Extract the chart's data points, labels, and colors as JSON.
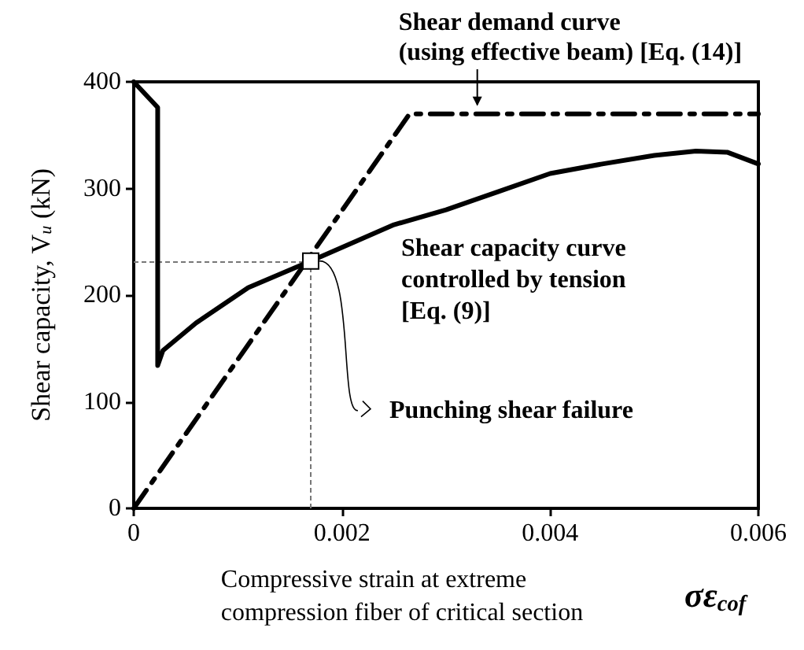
{
  "chart_data": {
    "type": "line",
    "xlabel": "Compressive strain at extreme\ncompression fiber of critical section",
    "ylabel": "Shear capacity, V$_{u}$ (kN)",
    "xlim": [
      0,
      0.006
    ],
    "xticks": [
      0,
      0.002,
      0.004,
      0.006
    ],
    "ylim": [
      0,
      400
    ],
    "yticks": [
      0,
      100,
      200,
      300,
      400
    ],
    "ref_lines": [
      {
        "axis": "x",
        "value": 0.0017,
        "color": "#777777",
        "line_style": "dotted"
      },
      {
        "axis": "y",
        "value": 232,
        "color": "#777777",
        "line_style": "dotted"
      }
    ],
    "grid": false,
    "marker": "none",
    "series": [
      {
        "color": "#000000",
        "line_style": "solid",
        "x": [
          0,
          0.00023,
          0.00023,
          0.00028,
          0.0006,
          0.0011,
          0.0017,
          0.0025,
          0.003,
          0.0035,
          0.004,
          0.0045,
          0.005,
          0.0054,
          0.0057,
          0.006
        ],
        "values": [
          400,
          376,
          134,
          148,
          174,
          207,
          232,
          266,
          280,
          297,
          314,
          323,
          331,
          335,
          334,
          323
        ]
      },
      {
        "color": "#000000",
        "line_style": "dashed",
        "x": [
          0,
          0.00265,
          0.006
        ],
        "values": [
          0,
          370,
          370
        ]
      }
    ],
    "annotations": [
      {
        "text": "Shear demand curve\n(using effective beam) [Eq. (14)]",
        "x": 0.0033,
        "y": 370
      },
      "Shear capacity curve\ncontrolled by tension\n[Eq. (9)]",
      {
        "text": "Punching shear failure",
        "x": 0.0017,
        "y": 232
      },
      "σε$_{cof}$"
    ]
  }
}
